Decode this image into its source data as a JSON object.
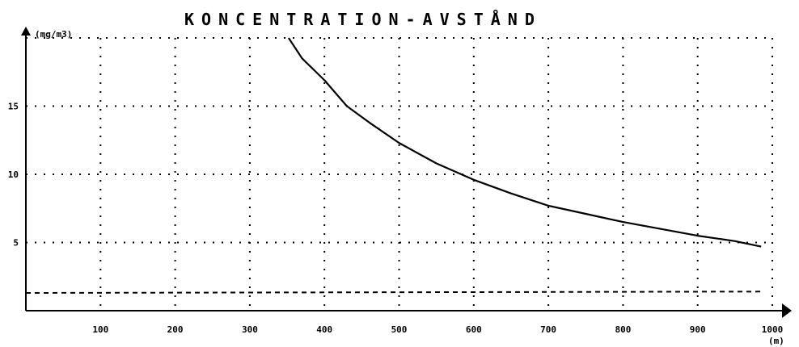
{
  "chart_data": {
    "type": "line",
    "title": "KONCENTRATION-AVSTÅND",
    "ylabel": "(mg/m3)",
    "xlabel": "(m)",
    "xlim": [
      0,
      1000
    ],
    "ylim": [
      0,
      20
    ],
    "x_ticks": [
      100,
      200,
      300,
      400,
      500,
      600,
      700,
      800,
      900,
      1000
    ],
    "y_ticks": [
      5,
      10,
      15
    ],
    "grid": true,
    "series": [
      {
        "x": [
          352,
          370,
          400,
          430,
          460,
          500,
          550,
          600,
          650,
          700,
          750,
          800,
          850,
          900,
          950,
          985
        ],
        "values": [
          20.0,
          18.5,
          16.9,
          15.0,
          13.8,
          12.3,
          10.8,
          9.6,
          8.6,
          7.7,
          7.1,
          6.5,
          6.0,
          5.5,
          5.1,
          4.7
        ]
      },
      {
        "x": [
          0,
          985
        ],
        "values": [
          1.3,
          1.4
        ]
      }
    ]
  }
}
